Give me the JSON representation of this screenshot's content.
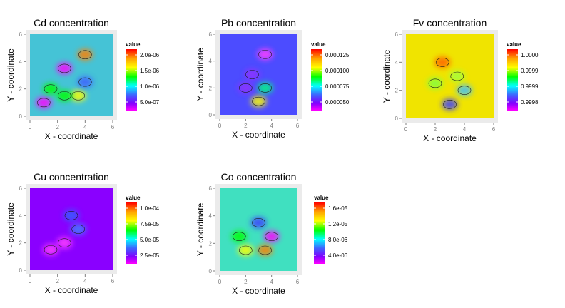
{
  "legend_title": "value",
  "chart_data": [
    {
      "type": "heatmap",
      "title": "Cd concentration",
      "xlabel": "X - coordinate",
      "ylabel": "Y - coordinate",
      "xlim": [
        0,
        6
      ],
      "ylim": [
        0,
        6
      ],
      "x_ticks": [
        "0",
        "2",
        "4",
        "6"
      ],
      "y_ticks": [
        "0",
        "2",
        "4",
        "6"
      ],
      "background_color": "#45c3d6",
      "legend_ticks": [
        "2.0e-06",
        "1.5e-06",
        "1.0e-06",
        "5.0e-07"
      ],
      "hotspots": [
        {
          "x": 1.0,
          "y": 1.0,
          "color": "#ff00ff"
        },
        {
          "x": 2.5,
          "y": 3.5,
          "color": "#ff00ff"
        },
        {
          "x": 1.5,
          "y": 2.0,
          "color": "#00ff00"
        },
        {
          "x": 3.5,
          "y": 1.5,
          "color": "#ffff00"
        },
        {
          "x": 4.0,
          "y": 4.5,
          "color": "#ff8000"
        },
        {
          "x": 4.0,
          "y": 2.5,
          "color": "#4060ff"
        },
        {
          "x": 2.5,
          "y": 1.5,
          "color": "#00ff00"
        }
      ]
    },
    {
      "type": "heatmap",
      "title": "Pb concentration",
      "xlabel": "X - coordinate",
      "ylabel": "Y - coordinate",
      "xlim": [
        0,
        6
      ],
      "ylim": [
        0,
        6
      ],
      "x_ticks": [
        "0",
        "2",
        "4",
        "6"
      ],
      "y_ticks": [
        "0",
        "2",
        "4",
        "6"
      ],
      "background_color": "#4c4cff",
      "legend_ticks": [
        "0.000125",
        "0.000100",
        "0.000075",
        "0.000050"
      ],
      "hotspots": [
        {
          "x": 3.0,
          "y": 1.0,
          "color": "#ffff00"
        },
        {
          "x": 3.5,
          "y": 4.5,
          "color": "#ff40ff"
        },
        {
          "x": 2.5,
          "y": 3.0,
          "color": "#9030ff"
        },
        {
          "x": 3.5,
          "y": 2.0,
          "color": "#00ff80"
        },
        {
          "x": 2.0,
          "y": 2.0,
          "color": "#9030ff"
        }
      ]
    },
    {
      "type": "heatmap",
      "title": "Fv concentration",
      "xlabel": "X - coordinate",
      "ylabel": "Y - coordinate",
      "xlim": [
        0,
        6
      ],
      "ylim": [
        0,
        6
      ],
      "x_ticks": [
        "0",
        "2",
        "4",
        "6"
      ],
      "y_ticks": [
        "0",
        "2",
        "4",
        "6"
      ],
      "background_color": "#f0e400",
      "legend_ticks": [
        "1.0000",
        "0.9999",
        "0.9999",
        "0.9998"
      ],
      "hotspots": [
        {
          "x": 2.5,
          "y": 4.0,
          "color": "#ff6000"
        },
        {
          "x": 3.0,
          "y": 1.0,
          "color": "#4040ff"
        },
        {
          "x": 4.0,
          "y": 2.0,
          "color": "#40c0ff"
        },
        {
          "x": 3.5,
          "y": 3.0,
          "color": "#a0ff40"
        },
        {
          "x": 2.0,
          "y": 2.5,
          "color": "#80ff40"
        }
      ]
    },
    {
      "type": "heatmap",
      "title": "Cu concentration",
      "xlabel": "X - coordinate",
      "ylabel": "Y - coordinate",
      "xlim": [
        0,
        6
      ],
      "ylim": [
        0,
        6
      ],
      "x_ticks": [
        "0",
        "2",
        "4",
        "6"
      ],
      "y_ticks": [
        "0",
        "2",
        "4",
        "6"
      ],
      "background_color": "#8a00ff",
      "legend_ticks": [
        "1.0e-04",
        "7.5e-05",
        "5.0e-05",
        "2.5e-05"
      ],
      "hotspots": [
        {
          "x": 2.5,
          "y": 2.0,
          "color": "#ff40ff"
        },
        {
          "x": 3.5,
          "y": 3.0,
          "color": "#4080ff"
        },
        {
          "x": 1.5,
          "y": 1.5,
          "color": "#ff40ff"
        },
        {
          "x": 3.0,
          "y": 4.0,
          "color": "#3060ff"
        }
      ]
    },
    {
      "type": "heatmap",
      "title": "Co concentration",
      "xlabel": "X - coordinate",
      "ylabel": "Y - coordinate",
      "xlim": [
        0,
        6
      ],
      "ylim": [
        0,
        6
      ],
      "x_ticks": [
        "0",
        "2",
        "4",
        "6"
      ],
      "y_ticks": [
        "0",
        "2",
        "4",
        "6"
      ],
      "background_color": "#40e0c0",
      "legend_ticks": [
        "1.6e-05",
        "1.2e-05",
        "8.0e-06",
        "4.0e-06"
      ],
      "hotspots": [
        {
          "x": 3.0,
          "y": 3.5,
          "color": "#4040ff"
        },
        {
          "x": 2.0,
          "y": 1.5,
          "color": "#ffff00"
        },
        {
          "x": 4.0,
          "y": 2.5,
          "color": "#ff00ff"
        },
        {
          "x": 3.5,
          "y": 1.5,
          "color": "#ff8000"
        },
        {
          "x": 1.5,
          "y": 2.5,
          "color": "#00ff00"
        }
      ]
    }
  ]
}
